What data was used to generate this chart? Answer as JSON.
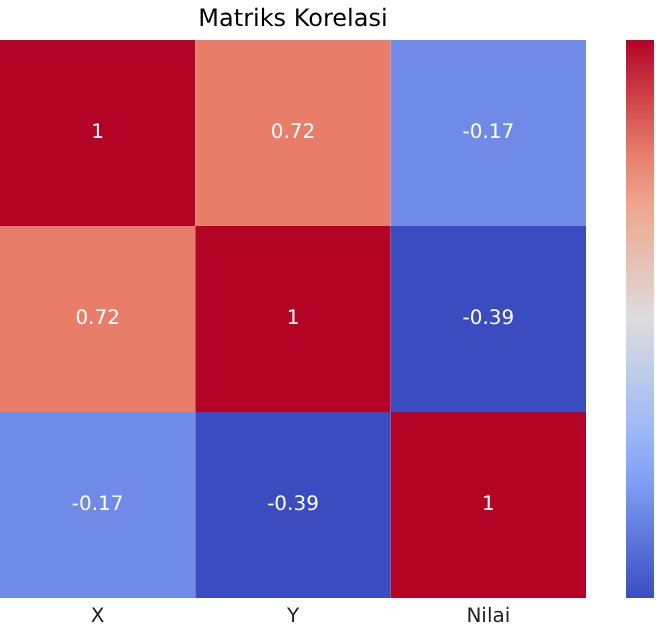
{
  "chart_data": {
    "type": "heatmap",
    "title": "Matriks Korelasi",
    "categories": [
      "X",
      "Y",
      "Nilai"
    ],
    "y_categories": [
      null,
      null,
      null
    ],
    "cells": [
      [
        1,
        0.72,
        -0.17
      ],
      [
        0.72,
        1,
        -0.39
      ],
      [
        -0.17,
        -0.39,
        1
      ]
    ],
    "data_labels": true,
    "tick_labels": "x"
  }
}
